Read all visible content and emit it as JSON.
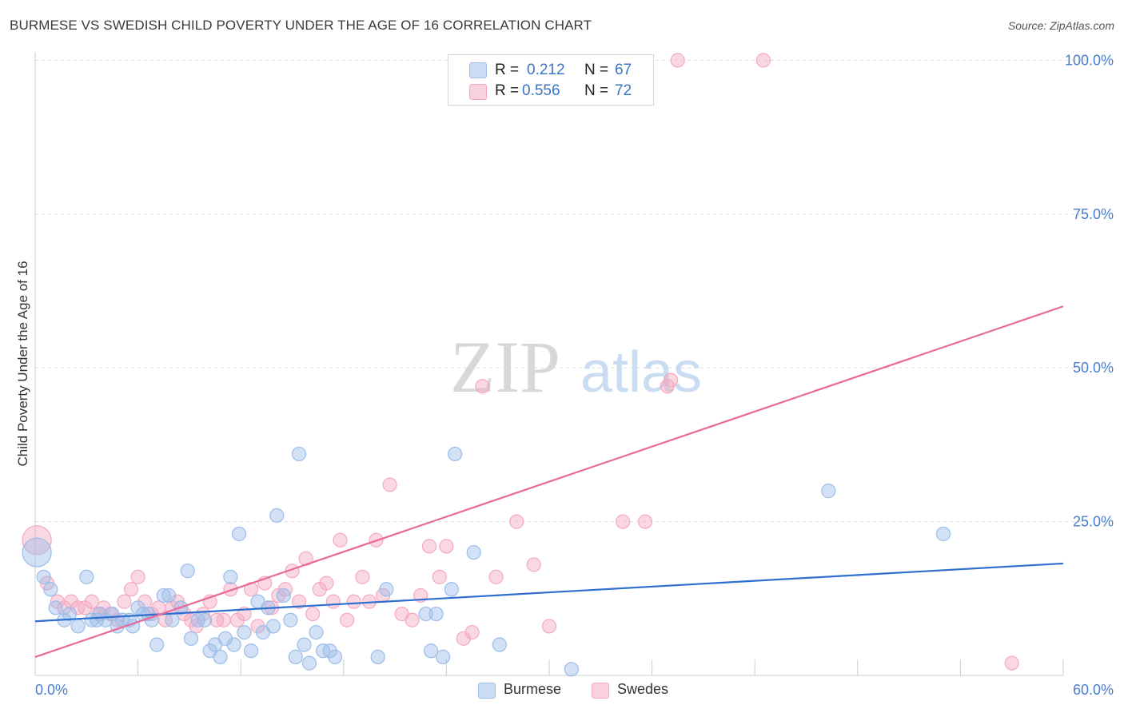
{
  "title": "BURMESE VS SWEDISH CHILD POVERTY UNDER THE AGE OF 16 CORRELATION CHART",
  "source": "Source: ZipAtlas.com",
  "watermark": {
    "zip": "ZIP",
    "atlas": "atlas"
  },
  "legend_top": {
    "r_label": "R =",
    "n_label": "N =",
    "rows": [
      {
        "r": "0.212",
        "n": "67",
        "color": "#9bbde8"
      },
      {
        "r": "0.556",
        "n": "72",
        "color": "#f4a9c1"
      }
    ]
  },
  "legend_bottom": [
    {
      "label": "Burmese",
      "color": "#9bbde8"
    },
    {
      "label": "Swedes",
      "color": "#f4a9c1"
    }
  ],
  "colors": {
    "blue": "#3b73c4",
    "blue_line": "#2e6fd0",
    "pink": "#e8699a",
    "grid": "#dddddd",
    "axis_text": "#4a7ccc"
  },
  "chart_data": {
    "type": "scatter",
    "title": "BURMESE VS SWEDISH CHILD POVERTY UNDER THE AGE OF 16 CORRELATION CHART",
    "ylabel": "Child Poverty Under the Age of 16",
    "xlabel": "",
    "xlim": [
      0,
      60
    ],
    "ylim": [
      0,
      102
    ],
    "x_tick_labels": [
      "0.0%",
      "60.0%"
    ],
    "y_ticks": [
      25,
      50,
      75,
      100
    ],
    "y_tick_labels": [
      "25.0%",
      "50.0%",
      "75.0%",
      "100.0%"
    ],
    "grid": true,
    "legend_placement": "top-center",
    "series": [
      {
        "name": "Burmese",
        "color": "#9bbde8",
        "r": 0.212,
        "n": 67,
        "trend": [
          [
            0,
            8.8
          ],
          [
            60,
            18.2
          ]
        ],
        "points": [
          [
            0.1,
            20
          ],
          [
            0.5,
            16
          ],
          [
            0.9,
            14
          ],
          [
            1.2,
            11
          ],
          [
            1.7,
            9
          ],
          [
            2.0,
            10
          ],
          [
            2.5,
            8
          ],
          [
            3.0,
            16
          ],
          [
            3.3,
            9
          ],
          [
            3.6,
            9
          ],
          [
            3.8,
            10
          ],
          [
            4.1,
            9
          ],
          [
            4.5,
            10
          ],
          [
            4.8,
            8
          ],
          [
            5.1,
            9
          ],
          [
            5.5,
            9
          ],
          [
            6.0,
            11
          ],
          [
            6.3,
            10
          ],
          [
            6.8,
            9
          ],
          [
            7.1,
            5
          ],
          [
            7.5,
            13
          ],
          [
            7.8,
            13
          ],
          [
            8.0,
            9
          ],
          [
            8.5,
            11
          ],
          [
            8.9,
            17
          ],
          [
            9.1,
            6
          ],
          [
            9.5,
            9
          ],
          [
            9.9,
            9
          ],
          [
            10.2,
            4
          ],
          [
            10.5,
            5
          ],
          [
            10.8,
            3
          ],
          [
            11.1,
            6
          ],
          [
            11.4,
            16
          ],
          [
            11.6,
            5
          ],
          [
            11.9,
            23
          ],
          [
            12.2,
            7
          ],
          [
            12.6,
            4
          ],
          [
            13.0,
            12
          ],
          [
            13.3,
            7
          ],
          [
            13.6,
            11
          ],
          [
            13.9,
            8
          ],
          [
            14.1,
            26
          ],
          [
            14.5,
            13
          ],
          [
            14.9,
            9
          ],
          [
            15.2,
            3
          ],
          [
            15.4,
            36
          ],
          [
            15.7,
            5
          ],
          [
            16.0,
            2
          ],
          [
            16.4,
            7
          ],
          [
            16.8,
            4
          ],
          [
            17.2,
            4
          ],
          [
            17.5,
            3
          ],
          [
            20.0,
            3
          ],
          [
            20.5,
            14
          ],
          [
            23.1,
            4
          ],
          [
            23.4,
            10
          ],
          [
            23.8,
            3
          ],
          [
            24.3,
            14
          ],
          [
            24.5,
            36
          ],
          [
            25.6,
            20
          ],
          [
            27.1,
            5
          ],
          [
            31.3,
            1
          ],
          [
            46.3,
            30
          ],
          [
            53.0,
            23
          ],
          [
            5.7,
            8
          ],
          [
            6.6,
            10
          ],
          [
            22.8,
            10
          ]
        ]
      },
      {
        "name": "Swedes",
        "color": "#f4a9c1",
        "r": 0.556,
        "n": 72,
        "trend": [
          [
            0,
            3
          ],
          [
            60,
            60
          ]
        ],
        "points": [
          [
            0.1,
            22
          ],
          [
            0.7,
            15
          ],
          [
            1.3,
            12
          ],
          [
            1.7,
            11
          ],
          [
            2.1,
            12
          ],
          [
            2.5,
            11
          ],
          [
            2.9,
            11
          ],
          [
            3.3,
            12
          ],
          [
            3.7,
            10
          ],
          [
            4.0,
            11
          ],
          [
            4.4,
            10
          ],
          [
            4.8,
            9
          ],
          [
            5.2,
            12
          ],
          [
            5.6,
            14
          ],
          [
            6.0,
            16
          ],
          [
            6.4,
            12
          ],
          [
            6.8,
            10
          ],
          [
            7.2,
            11
          ],
          [
            7.6,
            9
          ],
          [
            8.0,
            11
          ],
          [
            8.3,
            12
          ],
          [
            8.7,
            10
          ],
          [
            9.1,
            9
          ],
          [
            9.4,
            8
          ],
          [
            9.8,
            10
          ],
          [
            10.2,
            12
          ],
          [
            10.6,
            9
          ],
          [
            11.0,
            9
          ],
          [
            11.4,
            14
          ],
          [
            11.8,
            9
          ],
          [
            12.2,
            10
          ],
          [
            12.6,
            14
          ],
          [
            13.0,
            8
          ],
          [
            13.4,
            15
          ],
          [
            13.8,
            11
          ],
          [
            14.2,
            13
          ],
          [
            14.6,
            14
          ],
          [
            15.0,
            17
          ],
          [
            15.4,
            12
          ],
          [
            15.8,
            19
          ],
          [
            16.2,
            10
          ],
          [
            16.6,
            14
          ],
          [
            17.0,
            15
          ],
          [
            17.4,
            12
          ],
          [
            17.8,
            22
          ],
          [
            18.2,
            9
          ],
          [
            18.6,
            12
          ],
          [
            19.1,
            16
          ],
          [
            19.5,
            12
          ],
          [
            19.9,
            22
          ],
          [
            20.3,
            13
          ],
          [
            20.7,
            31
          ],
          [
            21.4,
            10
          ],
          [
            22.0,
            9
          ],
          [
            22.5,
            13
          ],
          [
            23.0,
            21
          ],
          [
            23.6,
            16
          ],
          [
            24.0,
            21
          ],
          [
            25.0,
            6
          ],
          [
            25.5,
            7
          ],
          [
            26.1,
            47
          ],
          [
            26.9,
            16
          ],
          [
            28.1,
            25
          ],
          [
            29.1,
            18
          ],
          [
            30.0,
            8
          ],
          [
            34.3,
            25
          ],
          [
            35.6,
            25
          ],
          [
            36.9,
            47
          ],
          [
            37.1,
            48
          ],
          [
            37.5,
            100
          ],
          [
            42.5,
            100
          ],
          [
            57.0,
            2
          ]
        ]
      }
    ]
  }
}
